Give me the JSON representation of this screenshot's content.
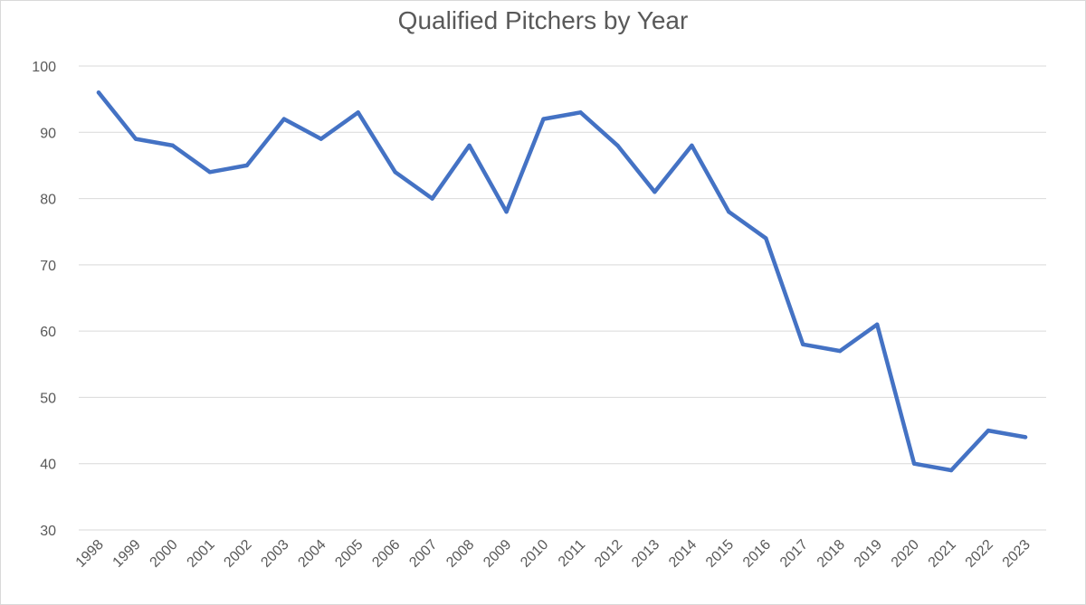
{
  "chart_data": {
    "type": "line",
    "title": "Qualified Pitchers by Year",
    "xlabel": "",
    "ylabel": "",
    "categories": [
      "1998",
      "1999",
      "2000",
      "2001",
      "2002",
      "2003",
      "2004",
      "2005",
      "2006",
      "2007",
      "2008",
      "2009",
      "2010",
      "2011",
      "2012",
      "2013",
      "2014",
      "2015",
      "2016",
      "2017",
      "2018",
      "2019",
      "2020",
      "2021",
      "2022",
      "2023"
    ],
    "series": [
      {
        "values": [
          96,
          89,
          88,
          84,
          85,
          92,
          89,
          93,
          84,
          80,
          88,
          78,
          92,
          93,
          88,
          81,
          88,
          78,
          74,
          58,
          57,
          61,
          40,
          39,
          45,
          44
        ],
        "color": "#4472c4"
      }
    ],
    "ylim": [
      30,
      100
    ],
    "yticks": [
      "30",
      "40",
      "50",
      "60",
      "70",
      "80",
      "90",
      "100"
    ],
    "grid": true,
    "legend": "none"
  }
}
